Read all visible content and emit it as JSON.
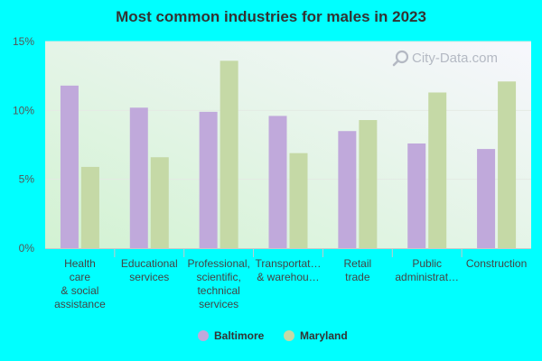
{
  "chart_data": {
    "type": "bar",
    "title": "Most common industries for males in 2023",
    "categories": [
      [
        "Health",
        "care",
        "& social",
        "assistance"
      ],
      [
        "Educational",
        "services"
      ],
      [
        "Professional,",
        "scientific,",
        "technical",
        "services"
      ],
      [
        "Transportat…",
        "& warehou…"
      ],
      [
        "Retail",
        "trade"
      ],
      [
        "Public",
        "administrat…"
      ],
      [
        "Construction"
      ]
    ],
    "series": [
      {
        "name": "Baltimore",
        "color": "#c0a9db",
        "values": [
          11.8,
          10.2,
          9.9,
          9.6,
          8.5,
          7.6,
          7.2
        ]
      },
      {
        "name": "Maryland",
        "color": "#c5d9a6",
        "values": [
          5.9,
          6.6,
          13.6,
          6.9,
          9.3,
          11.3,
          12.1
        ]
      }
    ],
    "y_ticks": [
      "0%",
      "5%",
      "10%",
      "15%"
    ],
    "ylim": [
      0,
      15
    ],
    "xlabel": "",
    "ylabel": "",
    "grid": true,
    "legend_position": "bottom-center"
  },
  "watermark": {
    "text": "City-Data.com",
    "icon": "magnifier-icon"
  }
}
